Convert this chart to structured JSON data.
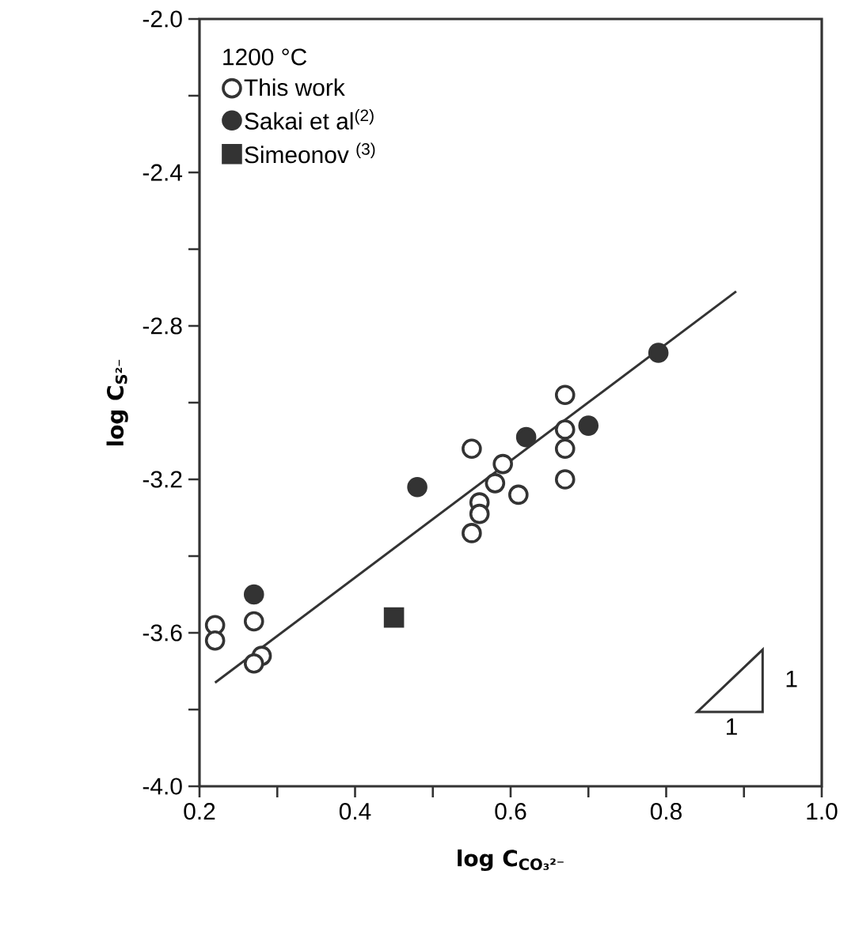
{
  "chart_data": {
    "type": "scatter",
    "xlabel": "log C$_{CO₃²⁻}$",
    "ylabel": "log C$_{S²⁻}$",
    "legend_title": "1200 °C",
    "xlim": [
      0.2,
      1.0
    ],
    "ylim": [
      -4.0,
      -2.0
    ],
    "xticks": [
      0.2,
      {
        "value": 0.3,
        "label": null
      },
      0.4,
      {
        "value": 0.5,
        "label": null
      },
      0.6,
      {
        "value": 0.7,
        "label": null
      },
      0.8,
      {
        "value": 0.9,
        "label": null
      },
      {
        "value": 1.0,
        "label": "1.0"
      }
    ],
    "yticks": [
      {
        "value": -4.0,
        "label": "-4.0"
      },
      {
        "value": -3.8,
        "label": null
      },
      -3.6,
      {
        "value": -3.4,
        "label": null
      },
      -3.2,
      {
        "value": -3.0,
        "label": null
      },
      -2.8,
      {
        "value": -2.6,
        "label": null
      },
      -2.4,
      {
        "value": -2.2,
        "label": null
      },
      {
        "value": -2.0,
        "label": "-2.0"
      }
    ],
    "legend": "top left",
    "grid": false,
    "annotations": [
      "1",
      "1"
    ],
    "series": [
      {
        "name": "This work",
        "color": "#ffffff",
        "marker": "circle",
        "x": [
          0.67,
          0.67,
          0.67,
          0.55,
          0.67,
          0.59,
          0.58,
          0.61,
          0.56,
          0.56,
          0.55,
          0.27,
          0.22,
          0.22,
          0.28,
          0.27
        ],
        "values": [
          -2.98,
          -3.07,
          -3.12,
          -3.12,
          -3.2,
          -3.16,
          -3.21,
          -3.24,
          -3.26,
          -3.29,
          -3.34,
          -3.57,
          -3.58,
          -3.62,
          -3.66,
          -3.68
        ]
      },
      {
        "name": "Sakai et al$^{(2)}$",
        "color": "#333333",
        "marker": "circle",
        "x": [
          0.79,
          0.7,
          0.62,
          0.48,
          0.27
        ],
        "values": [
          -2.87,
          -3.06,
          -3.09,
          -3.22,
          -3.5
        ]
      },
      {
        "name": "Simeonov $^{(3)}$",
        "color": "#333333",
        "marker": "square",
        "x": [
          0.45
        ],
        "values": [
          -3.56
        ]
      },
      {
        "type": "line",
        "color": "#333333",
        "line_style": "solid",
        "marker": "none",
        "x": [
          0.22,
          0.89
        ],
        "values": [
          -3.73,
          -2.71
        ]
      }
    ]
  }
}
